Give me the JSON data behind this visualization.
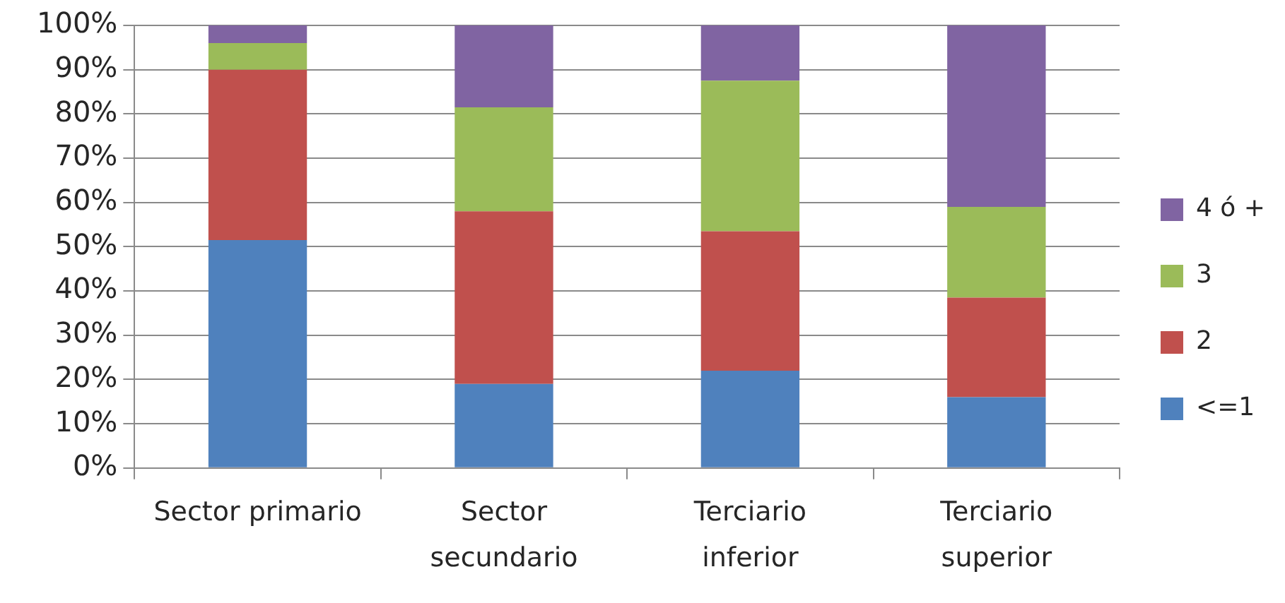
{
  "chart_data": {
    "type": "bar",
    "stacked": true,
    "categories": [
      "Sector primario",
      "Sector secundario",
      "Terciario inferior",
      "Terciario superior"
    ],
    "series": [
      {
        "name": "<=1",
        "color": "#4f81bd",
        "values": [
          51.5,
          19,
          22,
          16
        ]
      },
      {
        "name": "2",
        "color": "#c0504d",
        "values": [
          38.5,
          39,
          31.5,
          22.5
        ]
      },
      {
        "name": "3",
        "color": "#9bbb59",
        "values": [
          6,
          23.5,
          34,
          20.5
        ]
      },
      {
        "name": "4 ó +",
        "color": "#8064a2",
        "values": [
          4,
          18.5,
          12.5,
          41
        ]
      }
    ],
    "ylim": [
      0,
      100
    ],
    "yticks": [
      {
        "value": 0,
        "label": "0%"
      },
      {
        "value": 10,
        "label": "10%"
      },
      {
        "value": 20,
        "label": "20%"
      },
      {
        "value": 30,
        "label": "30%"
      },
      {
        "value": 40,
        "label": "40%"
      },
      {
        "value": 50,
        "label": "50%"
      },
      {
        "value": 60,
        "label": "60%"
      },
      {
        "value": 70,
        "label": "70%"
      },
      {
        "value": 80,
        "label": "80%"
      },
      {
        "value": 90,
        "label": "90%"
      },
      {
        "value": 100,
        "label": "100%"
      }
    ],
    "grid": "y",
    "legend": "right"
  }
}
